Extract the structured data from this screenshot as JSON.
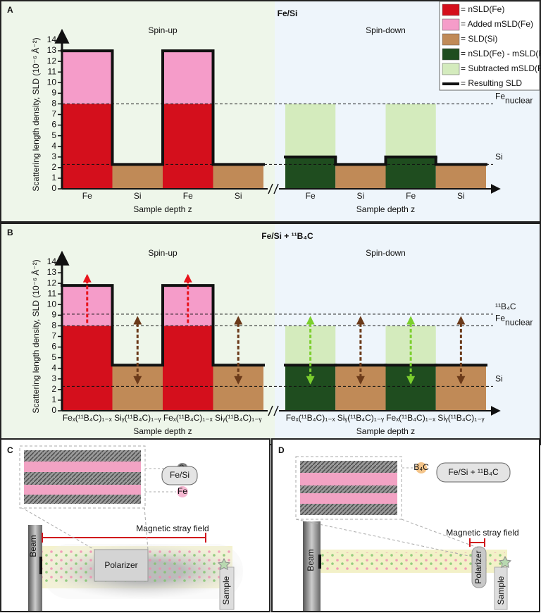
{
  "chart_data": [
    {
      "type": "bar",
      "panel": "A",
      "title": "Fe/Si",
      "y_label": "Scattering length density, SLD (10⁻⁶ Å⁻²)",
      "sides": [
        {
          "subtitle": "Spin-up",
          "color": "#e8141c",
          "x_label": "Sample depth z"
        },
        {
          "subtitle": "Spin-down",
          "color": "#2e8b2e",
          "x_label": "Sample depth z"
        }
      ],
      "categories": [
        "Fe",
        "Si",
        "Fe",
        "Si",
        "Fe",
        "Si",
        "Fe",
        "Si"
      ],
      "series": [
        {
          "name": "= nSLD(Fe)",
          "color": "#d40f1c",
          "values": [
            8,
            null,
            8,
            null,
            null,
            null,
            null,
            null
          ]
        },
        {
          "name": "= Added mSLD(Fe)",
          "color": "#f59cc9",
          "values": [
            5,
            null,
            5,
            null,
            null,
            null,
            null,
            null
          ]
        },
        {
          "name": "= SLD(Si)",
          "color": "#c08a57",
          "values": [
            null,
            2.3,
            null,
            2.3,
            null,
            2.3,
            null,
            2.3
          ]
        },
        {
          "name": "= nSLD(Fe) - mSLD(Fe)",
          "color": "#1f4d1f",
          "values": [
            null,
            null,
            null,
            null,
            3,
            null,
            3,
            null
          ]
        },
        {
          "name": "= Subtracted mSLD(Fe)",
          "color": "#d4ebbd",
          "values": [
            null,
            null,
            null,
            null,
            5,
            null,
            5,
            null
          ]
        },
        {
          "name": "= Resulting SLD",
          "color": "#111111",
          "style": "line",
          "values": [
            13,
            2.3,
            13,
            2.3,
            3,
            2.3,
            3,
            2.3
          ]
        }
      ],
      "ylim": [
        0,
        14
      ],
      "yticks": [
        0,
        1,
        2,
        3,
        4,
        5,
        6,
        7,
        8,
        9,
        10,
        11,
        12,
        13,
        14
      ],
      "reference_lines": [
        {
          "value": 8,
          "label": "Fe",
          "label_sub": "nuclear"
        },
        {
          "value": 2.3,
          "label": "Si"
        }
      ],
      "legend": "upper right"
    },
    {
      "type": "bar",
      "panel": "B",
      "title": "Fe/Si + ¹¹B₄C",
      "y_label": "Scattering length density, SLD (10⁻⁶ Å⁻²)",
      "sides": [
        {
          "subtitle": "Spin-up",
          "color": "#e8141c",
          "x_label": "Sample depth z"
        },
        {
          "subtitle": "Spin-down",
          "color": "#2e8b2e",
          "x_label": "Sample depth z"
        }
      ],
      "categories": [
        "Feₓ(¹¹B₄C)₁₋ₓ",
        "Siᵧ(¹¹B₄C)₁₋ᵧ",
        "Feₓ(¹¹B₄C)₁₋ₓ",
        "Siᵧ(¹¹B₄C)₁₋ᵧ",
        "Feₓ(¹¹B₄C)₁₋ₓ",
        "Siᵧ(¹¹B₄C)₁₋ᵧ",
        "Feₓ(¹¹B₄C)₁₋ₓ",
        "Siᵧ(¹¹B₄C)₁₋ᵧ"
      ],
      "series": [
        {
          "color": "#d40f1c",
          "values": [
            8,
            null,
            8,
            null,
            null,
            null,
            null,
            null
          ]
        },
        {
          "color": "#f59cc9",
          "values": [
            3.8,
            null,
            3.8,
            null,
            null,
            null,
            null,
            null
          ]
        },
        {
          "color": "#c08a57",
          "values": [
            null,
            4.3,
            null,
            4.3,
            null,
            4.3,
            null,
            4.3
          ]
        },
        {
          "color": "#1f4d1f",
          "values": [
            null,
            null,
            null,
            null,
            4.3,
            null,
            4.3,
            null
          ]
        },
        {
          "color": "#d4ebbd",
          "values": [
            null,
            null,
            null,
            null,
            3.7,
            null,
            3.7,
            null
          ]
        },
        {
          "color": "#111111",
          "style": "line",
          "values": [
            11.8,
            4.3,
            11.8,
            4.3,
            4.3,
            4.3,
            4.3,
            4.3
          ]
        }
      ],
      "ylim": [
        0,
        14
      ],
      "yticks": [
        0,
        1,
        2,
        3,
        4,
        5,
        6,
        7,
        8,
        9,
        10,
        11,
        12,
        13,
        14
      ],
      "reference_lines": [
        {
          "value": 9.1,
          "label": "¹¹B₄C"
        },
        {
          "value": 8,
          "label": "Fe",
          "label_sub": "nuclear"
        },
        {
          "value": 2.3,
          "label": "Si"
        }
      ],
      "arrows": true
    }
  ],
  "diagrams": [
    {
      "panel": "C",
      "sample_label": "Fe/Si",
      "inset_labels": [
        "Si",
        "Fe"
      ],
      "field_label": "Magnetic stray field",
      "polarizer": "Polarizer",
      "beam": "Beam",
      "sample": "Sample"
    },
    {
      "panel": "D",
      "sample_label": "Fe/Si + ¹¹B₄C",
      "inset_labels": [
        "B₄C"
      ],
      "field_label": "Magnetic stray field",
      "polarizer": "Polarizer",
      "beam": "Beam",
      "sample": "Sample"
    }
  ]
}
